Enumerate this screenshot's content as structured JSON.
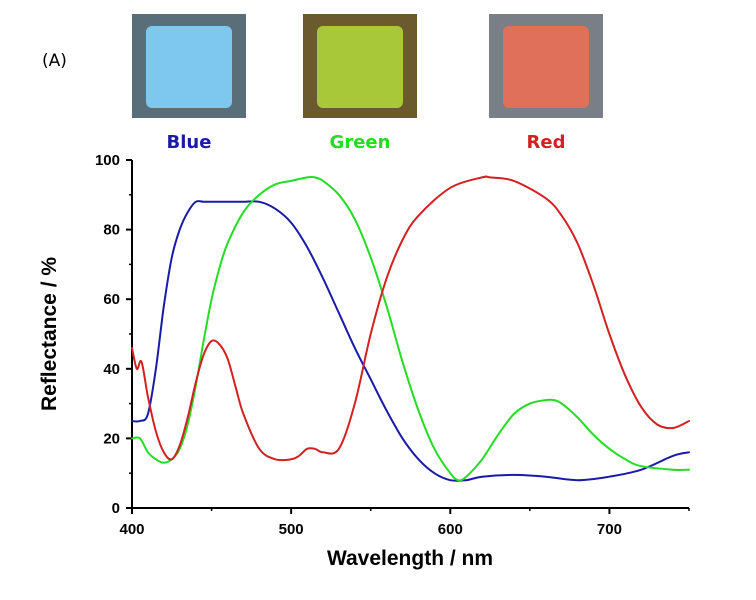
{
  "panel_label": "(A)",
  "colors": {
    "blue": "#1a1aa8",
    "green": "#22dd22",
    "red": "#d42020"
  },
  "samples": [
    {
      "label": "Blue",
      "color": "#1a1aa8",
      "swatch_inner": "#7ec8f0",
      "swatch_frame": "#5a6e7a"
    },
    {
      "label": "Green",
      "color": "#22dd22",
      "swatch_inner": "#a8c83a",
      "swatch_frame": "#6b5a2e"
    },
    {
      "label": "Red",
      "color": "#d42020",
      "swatch_inner": "#e0705a",
      "swatch_frame": "#7a7e86"
    }
  ],
  "chart_data": {
    "type": "line",
    "xlabel": "Wavelength / nm",
    "ylabel": "Reflectance / %",
    "xlim": [
      400,
      750
    ],
    "ylim": [
      0,
      100
    ],
    "xticks": [
      400,
      500,
      600,
      700
    ],
    "yticks": [
      0,
      20,
      40,
      60,
      80,
      100
    ],
    "grid": false,
    "series": [
      {
        "name": "Blue",
        "color": "#1a1aa8",
        "x": [
          400,
          405,
          410,
          415,
          420,
          425,
          430,
          435,
          440,
          445,
          450,
          455,
          460,
          470,
          480,
          490,
          500,
          510,
          520,
          530,
          540,
          550,
          560,
          570,
          580,
          590,
          600,
          610,
          620,
          640,
          660,
          680,
          700,
          720,
          740,
          750
        ],
        "y": [
          25,
          25,
          27,
          40,
          58,
          72,
          80,
          85,
          88,
          88,
          88,
          88,
          88,
          88,
          88,
          86,
          82,
          75,
          66,
          56,
          46,
          37,
          28,
          20,
          14,
          10,
          8,
          8,
          9,
          9.5,
          9,
          8,
          9,
          11,
          15,
          16
        ]
      },
      {
        "name": "Green",
        "color": "#22dd22",
        "x": [
          400,
          405,
          410,
          415,
          420,
          425,
          430,
          435,
          440,
          445,
          450,
          455,
          460,
          470,
          480,
          490,
          500,
          510,
          515,
          520,
          530,
          540,
          550,
          560,
          570,
          580,
          590,
          600,
          605,
          610,
          620,
          630,
          640,
          650,
          660,
          665,
          670,
          680,
          690,
          700,
          710,
          720,
          740,
          750
        ],
        "y": [
          20,
          20,
          16,
          14,
          13,
          14,
          17,
          24,
          35,
          48,
          60,
          69,
          76,
          85,
          90,
          93,
          94,
          95,
          95,
          94,
          90,
          83,
          72,
          58,
          42,
          28,
          17,
          10,
          8,
          9,
          14,
          21,
          27,
          30,
          31,
          31,
          30,
          26,
          21,
          17,
          14,
          12,
          11,
          11
        ]
      },
      {
        "name": "Red",
        "color": "#d42020",
        "x": [
          400,
          403,
          406,
          410,
          415,
          420,
          425,
          430,
          435,
          440,
          445,
          450,
          455,
          460,
          465,
          470,
          480,
          490,
          500,
          505,
          510,
          515,
          520,
          530,
          540,
          550,
          560,
          570,
          580,
          600,
          620,
          625,
          640,
          660,
          670,
          680,
          690,
          700,
          710,
          720,
          730,
          740,
          750
        ],
        "y": [
          46,
          40,
          42,
          32,
          22,
          16,
          14,
          18,
          26,
          36,
          44,
          48,
          47,
          43,
          35,
          27,
          17,
          14,
          14,
          15,
          17,
          17,
          16,
          17,
          30,
          50,
          66,
          77,
          84,
          92,
          95,
          95,
          94,
          89,
          84,
          76,
          64,
          50,
          38,
          29,
          24,
          23,
          25
        ]
      }
    ]
  }
}
